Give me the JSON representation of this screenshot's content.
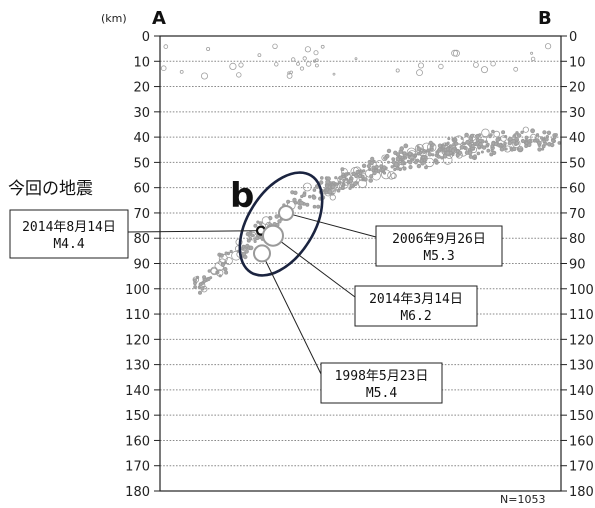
{
  "chart_data": {
    "type": "scatter",
    "ylabel_unit": "(km)",
    "left_end_label": "A",
    "right_end_label": "B",
    "ylim": [
      0,
      180
    ],
    "yticks": [
      0,
      10,
      20,
      30,
      40,
      50,
      60,
      70,
      80,
      90,
      100,
      110,
      120,
      130,
      140,
      150,
      160,
      170,
      180
    ],
    "grid": true,
    "region_label": "b",
    "title": "今回の地震",
    "count_label": "N=1053",
    "events": [
      {
        "date": "2014年8月14日",
        "mag": "M4.4",
        "depth": 77
      },
      {
        "date": "2006年9月26日",
        "mag": "M5.3",
        "depth": 70
      },
      {
        "date": "2014年3月14日",
        "mag": "M6.2",
        "depth": 79
      },
      {
        "date": "1998年5月23日",
        "mag": "M5.4",
        "depth": 86
      }
    ]
  }
}
